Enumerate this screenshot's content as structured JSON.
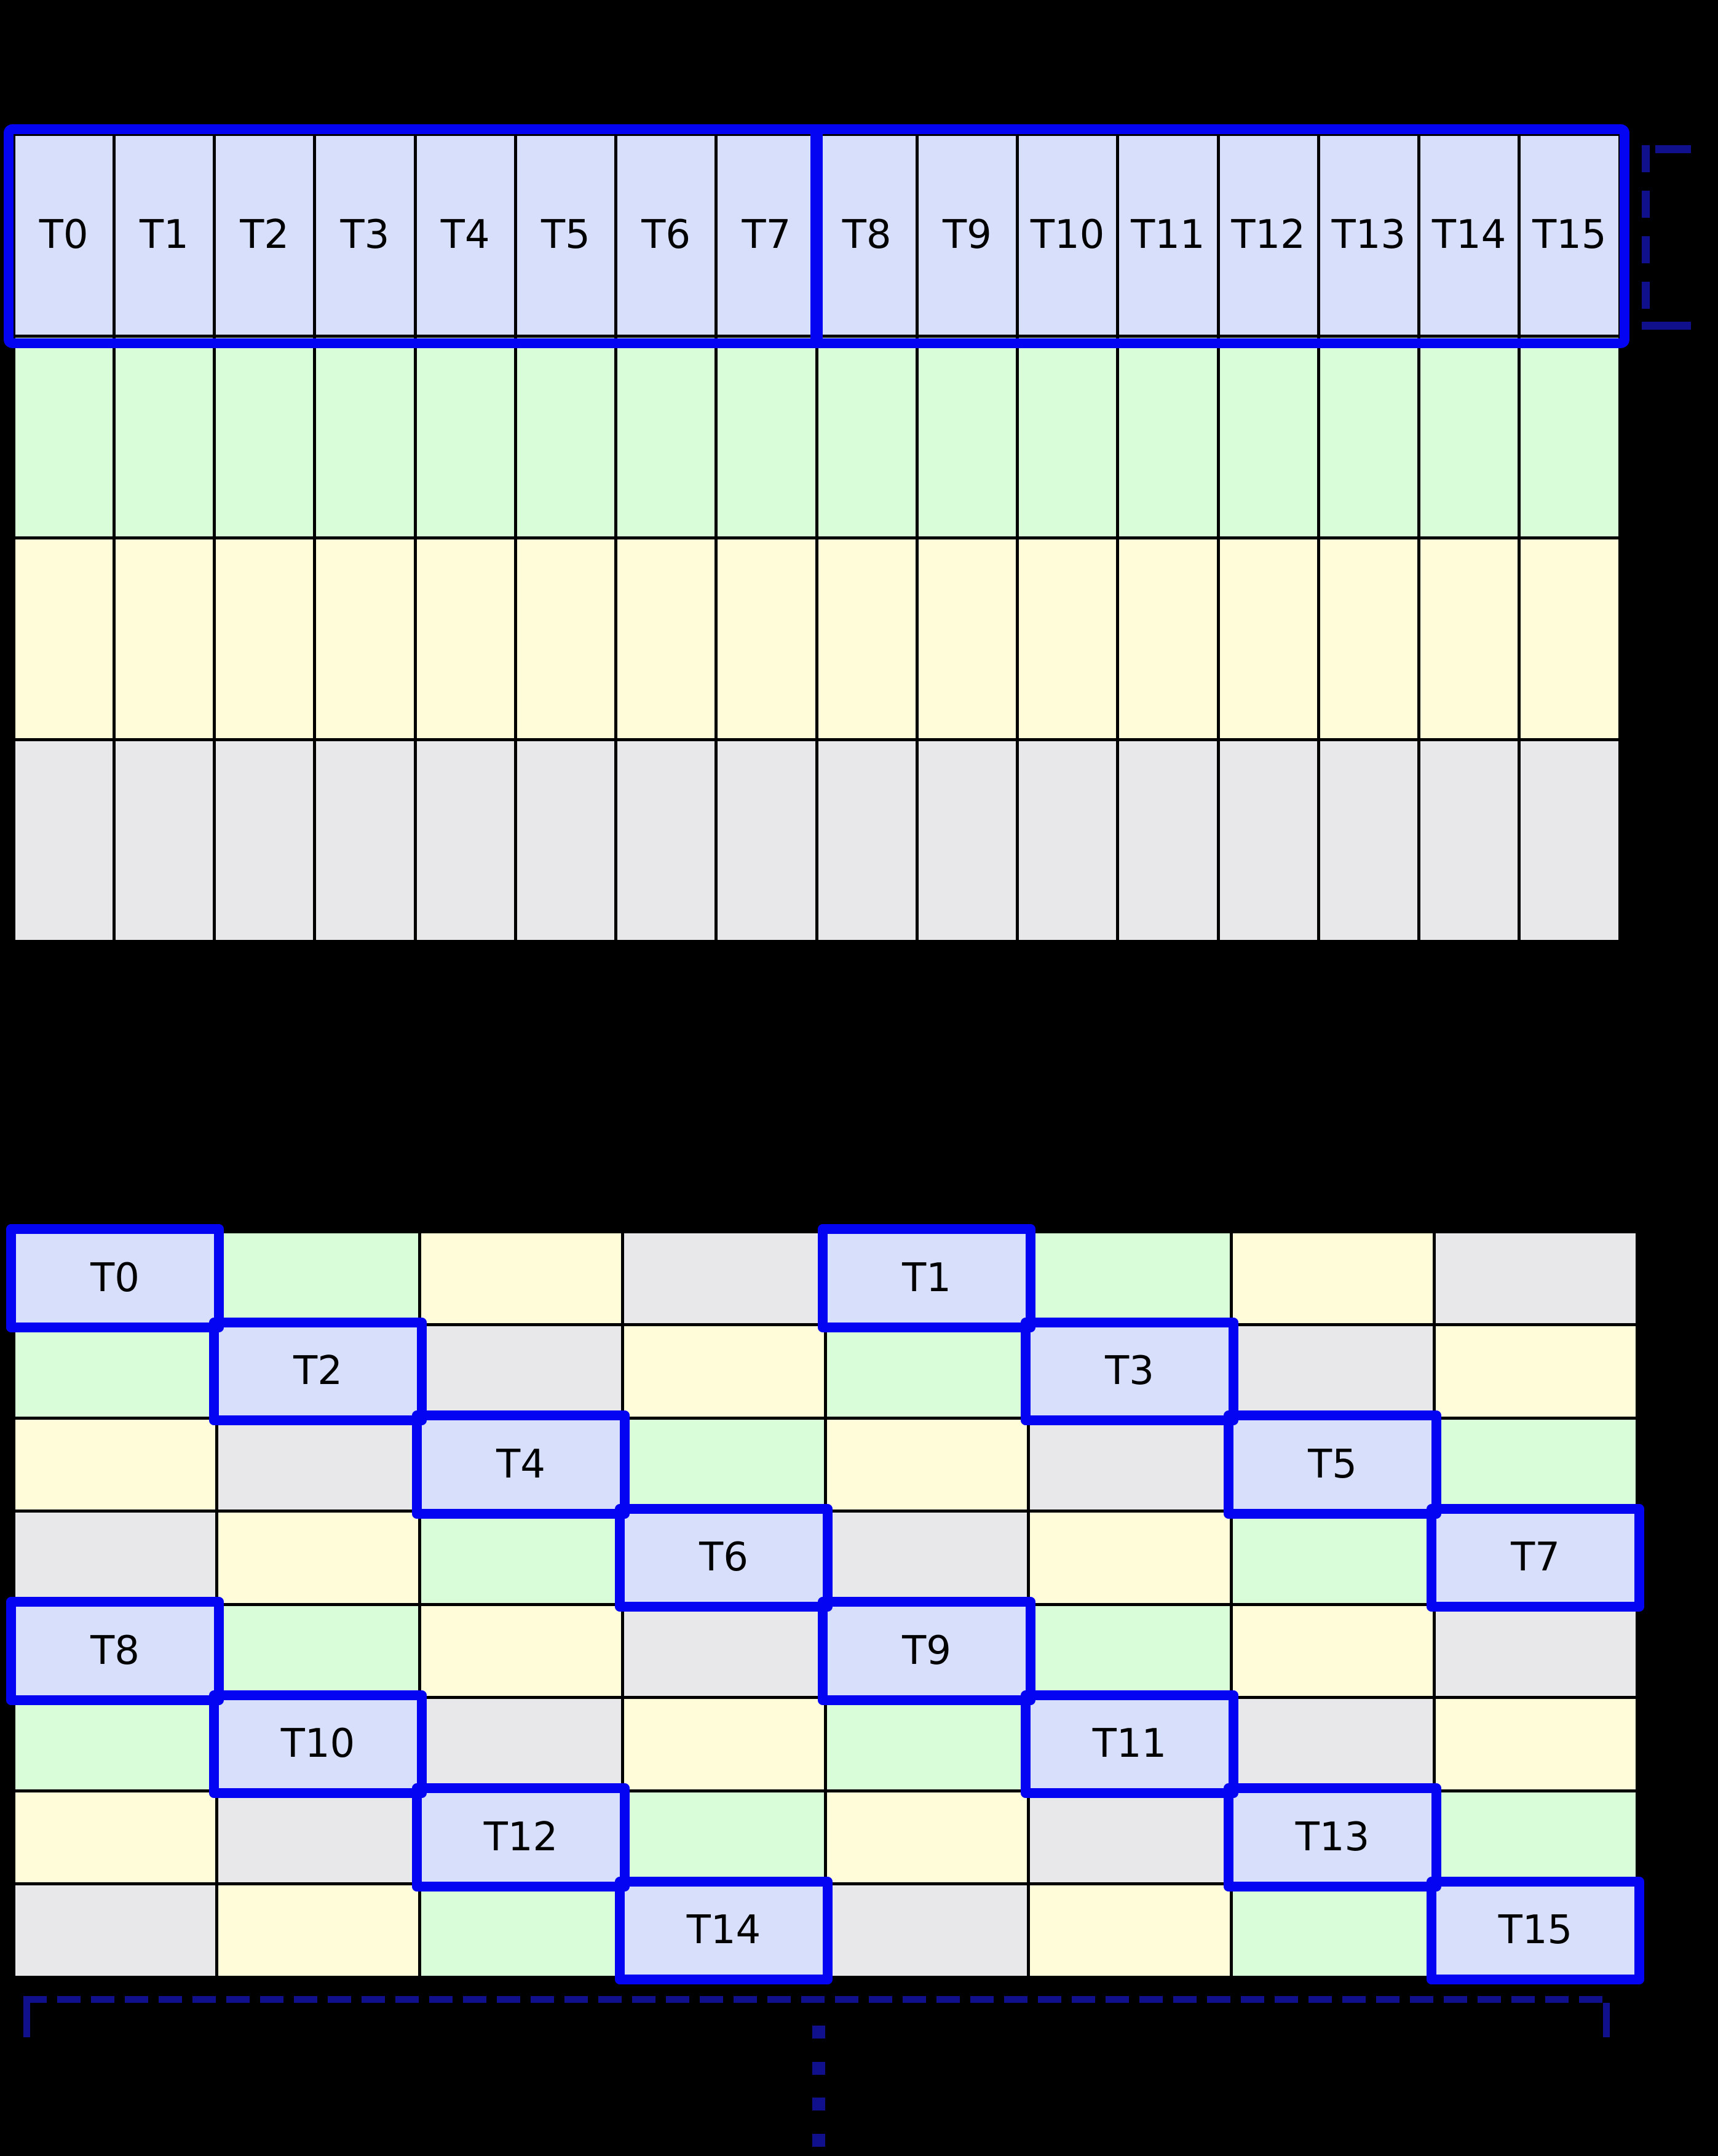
{
  "diagram": {
    "background": "#000000",
    "palette": {
      "periwinkle": "#d7dffb",
      "green": "#d9fdd8",
      "yellow": "#fffcda",
      "gray": "#e8e8ea",
      "outline_blue": "#0404f2",
      "bracket_navy": "#10108c",
      "grid_line": "#000000",
      "label_color": "#000000"
    },
    "top_grid": {
      "columns": 16,
      "thread_labels": [
        "T0",
        "T1",
        "T2",
        "T3",
        "T4",
        "T5",
        "T6",
        "T7",
        "T8",
        "T9",
        "T10",
        "T11",
        "T12",
        "T13",
        "T14",
        "T15"
      ],
      "rows": [
        {
          "name": "thread-row",
          "fill": "periwinkle"
        },
        {
          "name": "bank-row-green",
          "fill": "green"
        },
        {
          "name": "bank-row-yellow",
          "fill": "yellow"
        },
        {
          "name": "bank-row-gray",
          "fill": "gray"
        }
      ],
      "warp_outline": {
        "groups": [
          {
            "first_thread": "T0",
            "last_thread": "T7"
          },
          {
            "first_thread": "T8",
            "last_thread": "T15"
          }
        ]
      }
    },
    "bottom_grid": {
      "columns": 8,
      "rows": 8,
      "cells": [
        [
          "periwinkle",
          "green",
          "yellow",
          "gray",
          "periwinkle",
          "green",
          "yellow",
          "gray"
        ],
        [
          "green",
          "periwinkle",
          "gray",
          "yellow",
          "green",
          "periwinkle",
          "gray",
          "yellow"
        ],
        [
          "yellow",
          "gray",
          "periwinkle",
          "green",
          "yellow",
          "gray",
          "periwinkle",
          "green"
        ],
        [
          "gray",
          "yellow",
          "green",
          "periwinkle",
          "gray",
          "yellow",
          "green",
          "periwinkle"
        ],
        [
          "periwinkle",
          "green",
          "yellow",
          "gray",
          "periwinkle",
          "green",
          "yellow",
          "gray"
        ],
        [
          "green",
          "periwinkle",
          "gray",
          "yellow",
          "green",
          "periwinkle",
          "gray",
          "yellow"
        ],
        [
          "yellow",
          "gray",
          "periwinkle",
          "green",
          "yellow",
          "gray",
          "periwinkle",
          "green"
        ],
        [
          "gray",
          "yellow",
          "green",
          "periwinkle",
          "gray",
          "yellow",
          "green",
          "periwinkle"
        ]
      ],
      "highlights": [
        {
          "label": "T0",
          "row": 0,
          "col": 0
        },
        {
          "label": "T1",
          "row": 0,
          "col": 4
        },
        {
          "label": "T2",
          "row": 1,
          "col": 1
        },
        {
          "label": "T3",
          "row": 1,
          "col": 5
        },
        {
          "label": "T4",
          "row": 2,
          "col": 2
        },
        {
          "label": "T5",
          "row": 2,
          "col": 6
        },
        {
          "label": "T6",
          "row": 3,
          "col": 3
        },
        {
          "label": "T7",
          "row": 3,
          "col": 7
        },
        {
          "label": "T8",
          "row": 4,
          "col": 0
        },
        {
          "label": "T9",
          "row": 4,
          "col": 4
        },
        {
          "label": "T10",
          "row": 5,
          "col": 1
        },
        {
          "label": "T11",
          "row": 5,
          "col": 5
        },
        {
          "label": "T12",
          "row": 6,
          "col": 2
        },
        {
          "label": "T13",
          "row": 6,
          "col": 6
        },
        {
          "label": "T14",
          "row": 7,
          "col": 3
        },
        {
          "label": "T15",
          "row": 7,
          "col": 7
        }
      ]
    },
    "icons": {
      "right_bracket": "dashed-warp-bracket-icon",
      "bottom_bracket": "dashed-extent-bracket-icon",
      "continuation": "vertical-ellipsis-icon"
    }
  }
}
